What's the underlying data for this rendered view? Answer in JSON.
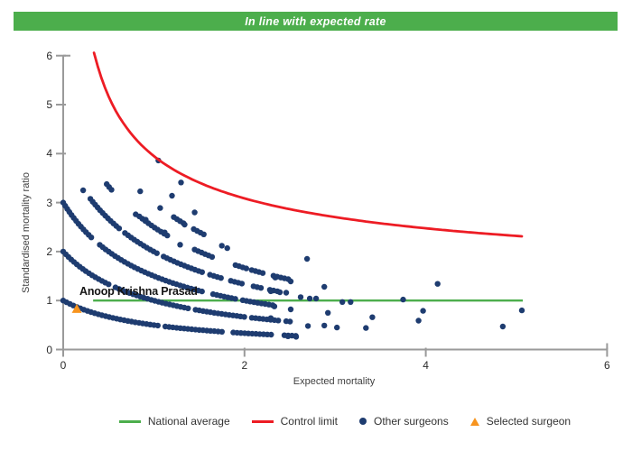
{
  "header": {
    "title": "In line with expected rate",
    "bg_color": "#4cae4c",
    "text_color": "#ffffff"
  },
  "chart_data": {
    "type": "scatter",
    "title": "In line with expected rate",
    "xlabel": "Expected mortality",
    "ylabel": "Standardised mortality ratio",
    "xlim": [
      0,
      6
    ],
    "ylim": [
      0,
      6
    ],
    "x_ticks": [
      0,
      2,
      4,
      6
    ],
    "y_ticks": [
      0,
      1,
      2,
      3,
      4,
      5,
      6
    ],
    "grid": false,
    "legend_position": "bottom",
    "axis_color": "#9a9a9a",
    "annotation": {
      "label": "Anoop Krishna Prasad",
      "x": 0.18,
      "y": 1.2
    },
    "series": [
      {
        "name": "National average",
        "type": "line",
        "marker": "line",
        "color": "#4cae4c",
        "points": [
          [
            0.33,
            1.0
          ],
          [
            5.07,
            1.0
          ]
        ]
      },
      {
        "name": "Control limit",
        "type": "line",
        "marker": "line",
        "color": "#ed1c24",
        "formula": "y = 1 + 2.95/sqrt(x)",
        "a": 1.0,
        "b": 2.95,
        "x_start": 0.34,
        "x_end": 5.07,
        "points_sample": [
          [
            0.34,
            6.06
          ],
          [
            0.5,
            5.17
          ],
          [
            0.7,
            4.53
          ],
          [
            1.0,
            3.95
          ],
          [
            1.5,
            3.41
          ],
          [
            2.0,
            3.09
          ],
          [
            2.5,
            2.87
          ],
          [
            3.0,
            2.7
          ],
          [
            3.5,
            2.58
          ],
          [
            4.0,
            2.48
          ],
          [
            4.5,
            2.39
          ],
          [
            5.07,
            2.31
          ]
        ]
      },
      {
        "name": "Other surgeons",
        "type": "scatter",
        "marker": "dot",
        "color": "#1e3c70",
        "marker_radius": 3.2,
        "bands_note": "dense curved bands of surgeons follow y = k/(1+x) for k deaths-groups; dense = continuous dotted curve, fragments = short dashes of dots",
        "bands": [
          {
            "k": 1,
            "dense": [
              [
                0.0,
                2.3
              ]
            ],
            "gaps": [
              [
                1.05,
                1.1
              ],
              [
                1.78,
                1.84
              ]
            ],
            "fragments": [
              [
                2.44,
                2.6
              ]
            ]
          },
          {
            "k": 2,
            "dense": [
              [
                0.0,
                2.4
              ]
            ],
            "gaps": [
              [
                0.52,
                0.56
              ],
              [
                1.4,
                1.45
              ],
              [
                2.0,
                2.05
              ]
            ],
            "fragments": [
              [
                2.46,
                2.54
              ]
            ]
          },
          {
            "k": 3,
            "dense": [
              [
                0.0,
                2.32
              ]
            ],
            "gaps": [
              [
                0.34,
                0.4
              ],
              [
                1.55,
                1.62
              ],
              [
                1.92,
                1.98
              ]
            ],
            "fragments": []
          },
          {
            "k": 4,
            "dense": [
              [
                0.3,
                1.55
              ]
            ],
            "gaps": [
              [
                0.62,
                0.66
              ],
              [
                1.05,
                1.09
              ]
            ],
            "fragments": [
              [
                1.62,
                1.78
              ],
              [
                1.85,
                2.0
              ],
              [
                2.1,
                2.2
              ],
              [
                2.28,
                2.4
              ]
            ]
          },
          {
            "k": 5,
            "dense": [],
            "gaps": [],
            "fragments": [
              [
                0.48,
                0.56
              ],
              [
                0.84,
                1.16
              ],
              [
                1.45,
                1.68
              ],
              [
                1.9,
                2.05
              ],
              [
                2.08,
                2.22
              ],
              [
                2.32,
                2.52
              ]
            ]
          },
          {
            "k": 6,
            "dense": [],
            "gaps": [],
            "fragments": [
              [
                1.22,
                1.34
              ],
              [
                1.44,
                1.56
              ]
            ]
          }
        ],
        "points": [
          [
            0.22,
            3.25
          ],
          [
            0.85,
            3.23
          ],
          [
            1.05,
            3.86
          ],
          [
            1.2,
            3.14
          ],
          [
            1.3,
            3.41
          ],
          [
            0.8,
            2.76
          ],
          [
            0.91,
            2.65
          ],
          [
            1.07,
            2.89
          ],
          [
            1.45,
            2.8
          ],
          [
            1.34,
            2.55
          ],
          [
            1.12,
            2.39
          ],
          [
            1.29,
            2.14
          ],
          [
            1.75,
            2.12
          ],
          [
            1.81,
            2.07
          ],
          [
            2.69,
            1.85
          ],
          [
            2.34,
            1.47
          ],
          [
            2.51,
            1.39
          ],
          [
            2.88,
            1.28
          ],
          [
            4.13,
            1.34
          ],
          [
            2.29,
            1.19
          ],
          [
            2.39,
            1.17
          ],
          [
            2.46,
            1.16
          ],
          [
            2.62,
            1.07
          ],
          [
            2.72,
            1.04
          ],
          [
            2.79,
            1.04
          ],
          [
            3.08,
            0.97
          ],
          [
            3.17,
            0.97
          ],
          [
            3.75,
            1.02
          ],
          [
            2.33,
            0.88
          ],
          [
            2.51,
            0.82
          ],
          [
            2.92,
            0.75
          ],
          [
            3.41,
            0.66
          ],
          [
            3.97,
            0.79
          ],
          [
            5.06,
            0.8
          ],
          [
            2.29,
            0.64
          ],
          [
            3.92,
            0.59
          ],
          [
            4.85,
            0.47
          ],
          [
            3.34,
            0.44
          ],
          [
            3.02,
            0.45
          ],
          [
            2.88,
            0.49
          ],
          [
            2.7,
            0.48
          ],
          [
            2.57,
            0.26
          ],
          [
            2.48,
            0.27
          ]
        ]
      },
      {
        "name": "Selected surgeon",
        "type": "scatter",
        "marker": "triangle",
        "color": "#f7941e",
        "points": [
          [
            0.15,
            0.83
          ]
        ]
      }
    ]
  }
}
